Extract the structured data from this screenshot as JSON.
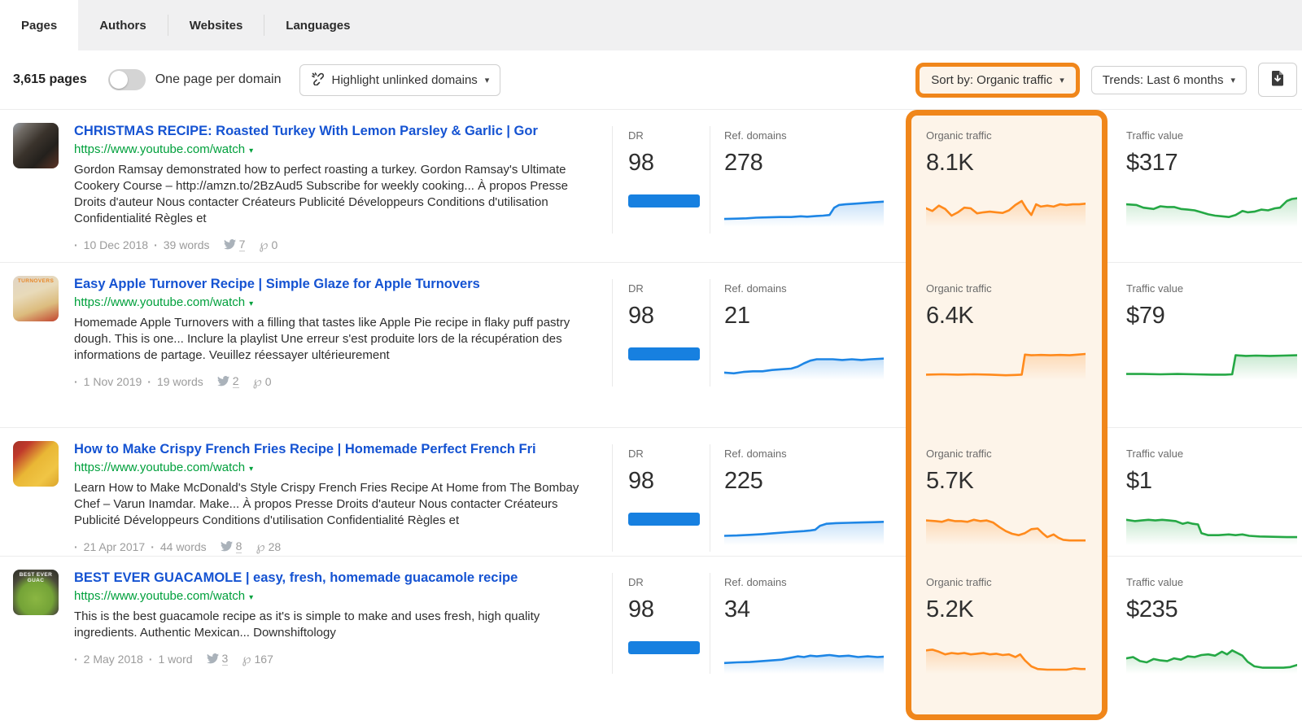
{
  "tabs": [
    {
      "label": "Pages",
      "active": true
    },
    {
      "label": "Authors",
      "active": false
    },
    {
      "label": "Websites",
      "active": false
    },
    {
      "label": "Languages",
      "active": false
    }
  ],
  "toolbar": {
    "page_count": "3,615 pages",
    "toggle_label": "One page per domain",
    "toggle_state": "off",
    "highlight_button": "Highlight unlinked domains",
    "sort_button": "Sort by: Organic traffic",
    "trends_button": "Trends: Last 6 months"
  },
  "columns": {
    "dr": "DR",
    "ref_domains": "Ref. domains",
    "organic": "Organic traffic",
    "traffic_value": "Traffic value"
  },
  "colors": {
    "annotation_orange": "#f0861a",
    "link_blue": "#1553d2",
    "url_green": "#00a03c",
    "dr_bar_blue": "#1780e0",
    "spark_blue": "#1e86e5",
    "spark_orange": "#ff8a1c",
    "spark_green": "#25a845"
  },
  "rows": [
    {
      "title": "CHRISTMAS RECIPE: Roasted Turkey With Lemon Parsley & Garlic | Gor",
      "url": "https://www.youtube.com/watch",
      "description": "Gordon Ramsay demonstrated how to perfect roasting a turkey. Gordon Ramsay's Ultimate Cookery Course – http://amzn.to/2BzAud5 Subscribe for weekly cooking... À propos Presse Droits d'auteur Nous contacter Créateurs Publicité Développeurs Conditions d'utilisation Confidentialité Règles et",
      "date": "10 Dec 2018",
      "words": "39 words",
      "twitter_count": "7",
      "pinterest_count": "0",
      "dr": "98",
      "dr_pct": 98,
      "ref_domains": "278",
      "organic": "8.1K",
      "traffic_value": "$317",
      "thumb_style": "dark-kitchen",
      "thumb_text": "",
      "spark_ref": [
        [
          0,
          0.18
        ],
        [
          8,
          0.19
        ],
        [
          14,
          0.2
        ],
        [
          20,
          0.22
        ],
        [
          28,
          0.23
        ],
        [
          35,
          0.24
        ],
        [
          42,
          0.24
        ],
        [
          48,
          0.26
        ],
        [
          52,
          0.25
        ],
        [
          58,
          0.27
        ],
        [
          62,
          0.28
        ],
        [
          66,
          0.3
        ],
        [
          69,
          0.52
        ],
        [
          72,
          0.6
        ],
        [
          76,
          0.62
        ],
        [
          82,
          0.64
        ],
        [
          88,
          0.66
        ],
        [
          94,
          0.68
        ],
        [
          100,
          0.7
        ]
      ],
      "spark_organic": [
        [
          0,
          0.5
        ],
        [
          4,
          0.42
        ],
        [
          8,
          0.58
        ],
        [
          12,
          0.48
        ],
        [
          16,
          0.28
        ],
        [
          20,
          0.38
        ],
        [
          24,
          0.52
        ],
        [
          28,
          0.5
        ],
        [
          32,
          0.35
        ],
        [
          36,
          0.38
        ],
        [
          40,
          0.4
        ],
        [
          44,
          0.38
        ],
        [
          48,
          0.36
        ],
        [
          52,
          0.44
        ],
        [
          56,
          0.6
        ],
        [
          60,
          0.72
        ],
        [
          63,
          0.48
        ],
        [
          66,
          0.3
        ],
        [
          69,
          0.62
        ],
        [
          72,
          0.55
        ],
        [
          76,
          0.58
        ],
        [
          80,
          0.55
        ],
        [
          84,
          0.62
        ],
        [
          88,
          0.6
        ],
        [
          92,
          0.62
        ],
        [
          96,
          0.62
        ],
        [
          100,
          0.64
        ]
      ],
      "spark_value": [
        [
          0,
          0.62
        ],
        [
          6,
          0.6
        ],
        [
          10,
          0.52
        ],
        [
          16,
          0.48
        ],
        [
          20,
          0.56
        ],
        [
          24,
          0.54
        ],
        [
          28,
          0.54
        ],
        [
          32,
          0.48
        ],
        [
          36,
          0.46
        ],
        [
          40,
          0.44
        ],
        [
          44,
          0.38
        ],
        [
          48,
          0.32
        ],
        [
          52,
          0.28
        ],
        [
          56,
          0.26
        ],
        [
          60,
          0.24
        ],
        [
          64,
          0.3
        ],
        [
          68,
          0.42
        ],
        [
          71,
          0.38
        ],
        [
          75,
          0.4
        ],
        [
          79,
          0.46
        ],
        [
          83,
          0.44
        ],
        [
          87,
          0.5
        ],
        [
          90,
          0.52
        ],
        [
          94,
          0.72
        ],
        [
          97,
          0.78
        ],
        [
          100,
          0.8
        ]
      ]
    },
    {
      "title": "Easy Apple Turnover Recipe | Simple Glaze for Apple Turnovers",
      "url": "https://www.youtube.com/watch",
      "description": "Homemade Apple Turnovers with a filling that tastes like Apple Pie recipe in flaky puff pastry dough. This is one... Inclure la playlist Une erreur s'est produite lors de la récupération des informations de partage. Veuillez réessayer ultérieurement",
      "date": "1 Nov 2019",
      "words": "19 words",
      "twitter_count": "2",
      "pinterest_count": "0",
      "dr": "98",
      "dr_pct": 98,
      "ref_domains": "21",
      "organic": "6.4K",
      "traffic_value": "$79",
      "thumb_style": "pastry",
      "thumb_text": "TURNOVERS",
      "spark_ref": [
        [
          0,
          0.16
        ],
        [
          6,
          0.14
        ],
        [
          12,
          0.18
        ],
        [
          18,
          0.2
        ],
        [
          24,
          0.2
        ],
        [
          30,
          0.24
        ],
        [
          36,
          0.26
        ],
        [
          42,
          0.28
        ],
        [
          46,
          0.34
        ],
        [
          50,
          0.44
        ],
        [
          54,
          0.52
        ],
        [
          58,
          0.56
        ],
        [
          62,
          0.56
        ],
        [
          68,
          0.56
        ],
        [
          74,
          0.54
        ],
        [
          80,
          0.56
        ],
        [
          86,
          0.54
        ],
        [
          92,
          0.56
        ],
        [
          100,
          0.58
        ]
      ],
      "spark_organic": [
        [
          0,
          0.1
        ],
        [
          10,
          0.11
        ],
        [
          20,
          0.1
        ],
        [
          30,
          0.11
        ],
        [
          40,
          0.1
        ],
        [
          50,
          0.08
        ],
        [
          56,
          0.09
        ],
        [
          60,
          0.1
        ],
        [
          62,
          0.7
        ],
        [
          66,
          0.68
        ],
        [
          72,
          0.69
        ],
        [
          78,
          0.68
        ],
        [
          84,
          0.69
        ],
        [
          90,
          0.68
        ],
        [
          95,
          0.7
        ],
        [
          100,
          0.72
        ]
      ],
      "spark_value": [
        [
          0,
          0.12
        ],
        [
          10,
          0.12
        ],
        [
          20,
          0.11
        ],
        [
          30,
          0.12
        ],
        [
          40,
          0.11
        ],
        [
          50,
          0.1
        ],
        [
          58,
          0.1
        ],
        [
          62,
          0.11
        ],
        [
          64,
          0.68
        ],
        [
          70,
          0.66
        ],
        [
          76,
          0.67
        ],
        [
          84,
          0.66
        ],
        [
          92,
          0.67
        ],
        [
          100,
          0.68
        ]
      ]
    },
    {
      "title": "How to Make Crispy French Fries Recipe | Homemade Perfect French Fri",
      "url": "https://www.youtube.com/watch",
      "description": "Learn How to Make McDonald's Style Crispy French Fries Recipe At Home from The Bombay Chef – Varun Inamdar. Make... À propos Presse Droits d'auteur Nous contacter Créateurs Publicité Développeurs Conditions d'utilisation Confidentialité Règles et",
      "date": "21 Apr 2017",
      "words": "44 words",
      "twitter_count": "8",
      "pinterest_count": "28",
      "dr": "98",
      "dr_pct": 98,
      "ref_domains": "225",
      "organic": "5.7K",
      "traffic_value": "$1",
      "thumb_style": "fries",
      "thumb_text": "",
      "spark_ref": [
        [
          0,
          0.22
        ],
        [
          8,
          0.23
        ],
        [
          16,
          0.25
        ],
        [
          24,
          0.27
        ],
        [
          32,
          0.3
        ],
        [
          40,
          0.33
        ],
        [
          46,
          0.35
        ],
        [
          50,
          0.36
        ],
        [
          54,
          0.38
        ],
        [
          57,
          0.4
        ],
        [
          60,
          0.52
        ],
        [
          64,
          0.58
        ],
        [
          70,
          0.6
        ],
        [
          78,
          0.61
        ],
        [
          86,
          0.62
        ],
        [
          94,
          0.63
        ],
        [
          100,
          0.64
        ]
      ],
      "spark_organic": [
        [
          0,
          0.68
        ],
        [
          6,
          0.66
        ],
        [
          10,
          0.64
        ],
        [
          14,
          0.7
        ],
        [
          18,
          0.66
        ],
        [
          22,
          0.66
        ],
        [
          26,
          0.64
        ],
        [
          30,
          0.7
        ],
        [
          34,
          0.66
        ],
        [
          38,
          0.68
        ],
        [
          42,
          0.62
        ],
        [
          46,
          0.48
        ],
        [
          50,
          0.36
        ],
        [
          54,
          0.28
        ],
        [
          58,
          0.24
        ],
        [
          62,
          0.3
        ],
        [
          66,
          0.42
        ],
        [
          70,
          0.44
        ],
        [
          73,
          0.3
        ],
        [
          76,
          0.18
        ],
        [
          80,
          0.26
        ],
        [
          83,
          0.16
        ],
        [
          86,
          0.1
        ],
        [
          90,
          0.08
        ],
        [
          95,
          0.08
        ],
        [
          100,
          0.08
        ]
      ],
      "spark_value": [
        [
          0,
          0.7
        ],
        [
          5,
          0.66
        ],
        [
          9,
          0.68
        ],
        [
          13,
          0.7
        ],
        [
          17,
          0.68
        ],
        [
          21,
          0.7
        ],
        [
          25,
          0.68
        ],
        [
          29,
          0.66
        ],
        [
          33,
          0.58
        ],
        [
          36,
          0.62
        ],
        [
          39,
          0.58
        ],
        [
          42,
          0.56
        ],
        [
          44,
          0.3
        ],
        [
          48,
          0.24
        ],
        [
          54,
          0.24
        ],
        [
          60,
          0.26
        ],
        [
          64,
          0.24
        ],
        [
          68,
          0.26
        ],
        [
          72,
          0.22
        ],
        [
          78,
          0.2
        ],
        [
          86,
          0.19
        ],
        [
          94,
          0.18
        ],
        [
          100,
          0.18
        ]
      ]
    },
    {
      "title": "BEST EVER GUACAMOLE | easy, fresh, homemade guacamole recipe",
      "url": "https://www.youtube.com/watch",
      "description": "This is the best guacamole recipe as it's is simple to make and uses fresh, high quality ingredients. Authentic Mexican... Downshiftology",
      "date": "2 May 2018",
      "words": "1 word",
      "twitter_count": "3",
      "pinterest_count": "167",
      "dr": "98",
      "dr_pct": 98,
      "ref_domains": "34",
      "organic": "5.2K",
      "traffic_value": "$235",
      "thumb_style": "guacamole",
      "thumb_text": "BEST EVER GUAC",
      "spark_ref": [
        [
          0,
          0.26
        ],
        [
          8,
          0.28
        ],
        [
          16,
          0.29
        ],
        [
          24,
          0.32
        ],
        [
          30,
          0.34
        ],
        [
          36,
          0.36
        ],
        [
          42,
          0.42
        ],
        [
          46,
          0.46
        ],
        [
          50,
          0.44
        ],
        [
          54,
          0.48
        ],
        [
          58,
          0.46
        ],
        [
          62,
          0.48
        ],
        [
          66,
          0.5
        ],
        [
          72,
          0.46
        ],
        [
          78,
          0.48
        ],
        [
          84,
          0.44
        ],
        [
          90,
          0.46
        ],
        [
          96,
          0.44
        ],
        [
          100,
          0.45
        ]
      ],
      "spark_organic": [
        [
          0,
          0.64
        ],
        [
          4,
          0.66
        ],
        [
          8,
          0.6
        ],
        [
          12,
          0.52
        ],
        [
          16,
          0.56
        ],
        [
          20,
          0.54
        ],
        [
          24,
          0.56
        ],
        [
          28,
          0.52
        ],
        [
          32,
          0.54
        ],
        [
          36,
          0.56
        ],
        [
          40,
          0.52
        ],
        [
          44,
          0.54
        ],
        [
          48,
          0.5
        ],
        [
          52,
          0.52
        ],
        [
          56,
          0.44
        ],
        [
          59,
          0.52
        ],
        [
          62,
          0.34
        ],
        [
          66,
          0.16
        ],
        [
          70,
          0.08
        ],
        [
          76,
          0.06
        ],
        [
          82,
          0.06
        ],
        [
          88,
          0.06
        ],
        [
          93,
          0.1
        ],
        [
          97,
          0.08
        ],
        [
          100,
          0.08
        ]
      ],
      "spark_value": [
        [
          0,
          0.4
        ],
        [
          4,
          0.44
        ],
        [
          8,
          0.32
        ],
        [
          12,
          0.28
        ],
        [
          16,
          0.38
        ],
        [
          20,
          0.34
        ],
        [
          24,
          0.32
        ],
        [
          28,
          0.4
        ],
        [
          32,
          0.36
        ],
        [
          36,
          0.46
        ],
        [
          40,
          0.44
        ],
        [
          44,
          0.5
        ],
        [
          48,
          0.52
        ],
        [
          52,
          0.48
        ],
        [
          56,
          0.6
        ],
        [
          59,
          0.52
        ],
        [
          62,
          0.64
        ],
        [
          65,
          0.56
        ],
        [
          68,
          0.48
        ],
        [
          71,
          0.3
        ],
        [
          75,
          0.16
        ],
        [
          80,
          0.12
        ],
        [
          86,
          0.12
        ],
        [
          92,
          0.12
        ],
        [
          96,
          0.14
        ],
        [
          100,
          0.2
        ]
      ]
    }
  ]
}
